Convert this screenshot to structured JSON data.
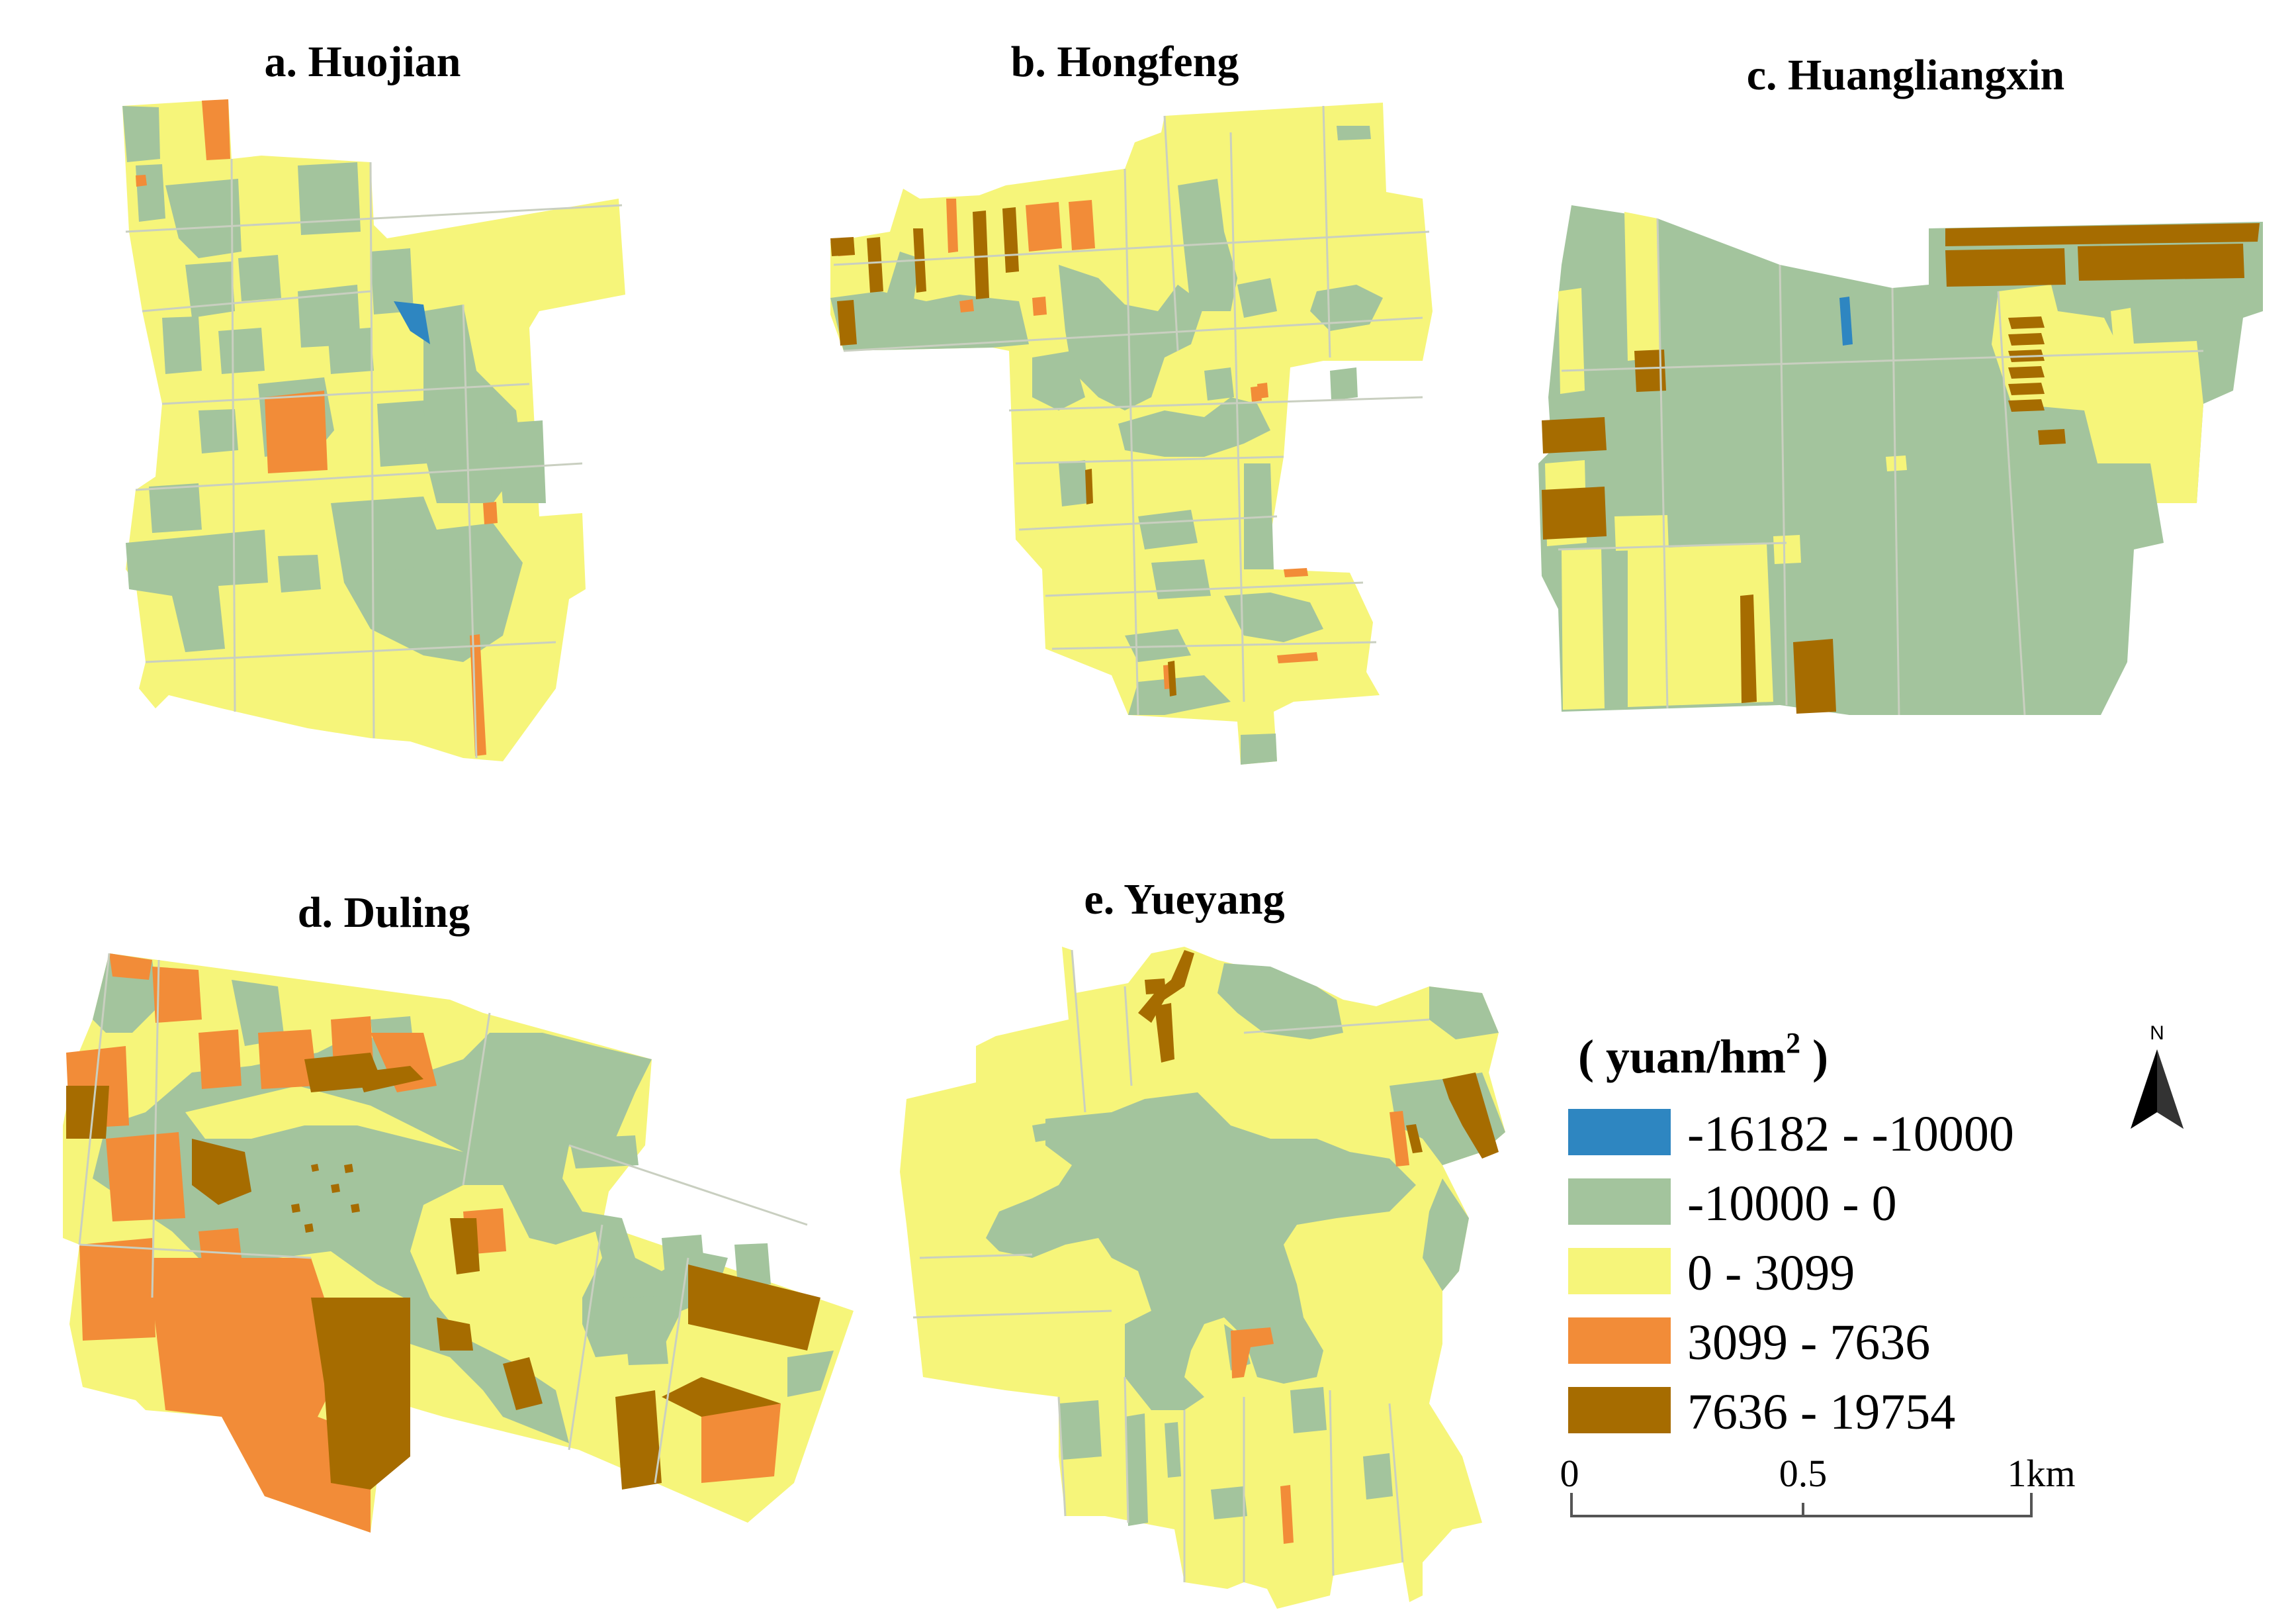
{
  "panels": [
    {
      "id": "a",
      "title": "a. Huojian"
    },
    {
      "id": "b",
      "title": "b. Hongfeng"
    },
    {
      "id": "c",
      "title": "c. Huangliangxin"
    },
    {
      "id": "d",
      "title": "d. Duling"
    },
    {
      "id": "e",
      "title": "e. Yueyang"
    }
  ],
  "legend": {
    "title_prefix": "( yuan/hm",
    "title_sup": "2",
    "title_suffix": " )",
    "classes": [
      {
        "label": "-16182 - -10000",
        "color": "#2e86c1"
      },
      {
        "label": "-10000 - 0",
        "color": "#a3c49d"
      },
      {
        "label": "0 - 3099",
        "color": "#f6f57a"
      },
      {
        "label": "3099 - 7636",
        "color": "#f28c38"
      },
      {
        "label": "7636 - 19754",
        "color": "#a66c00"
      }
    ]
  },
  "scale_bar": {
    "labels": [
      "0",
      "0.5",
      "1km"
    ]
  },
  "north_arrow": {
    "label": "N"
  }
}
